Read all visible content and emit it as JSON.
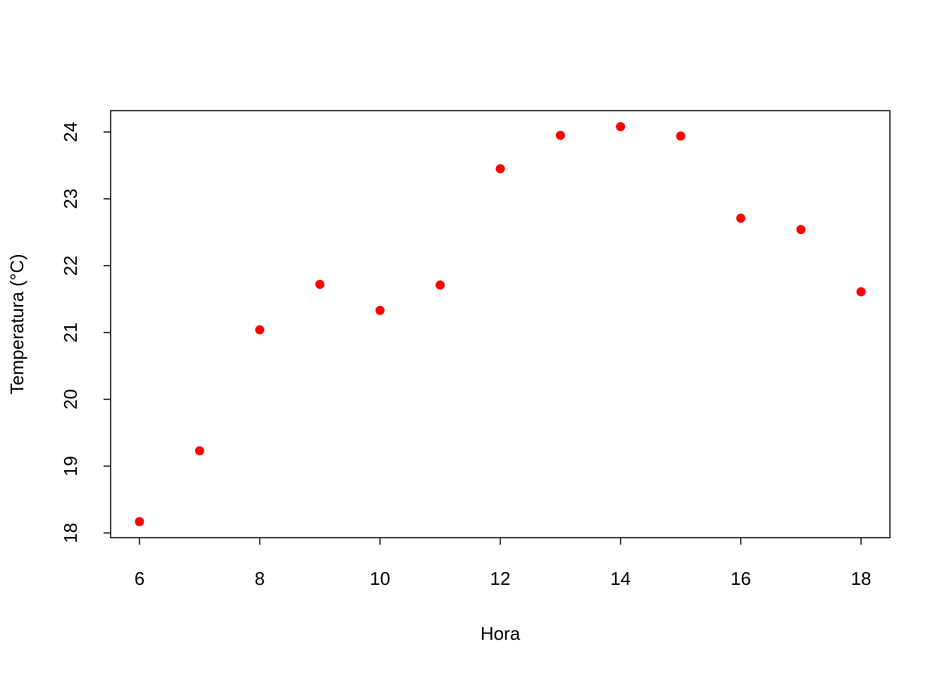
{
  "chart_data": {
    "type": "scatter",
    "x_label": "Hora",
    "y_label": "Temperatura (°C)",
    "series": [
      {
        "color": "#ff0000",
        "x": [
          6,
          7,
          8,
          9,
          10,
          11,
          12,
          13,
          14,
          15,
          16,
          17,
          18
        ],
        "values": [
          18.17,
          19.23,
          21.04,
          21.72,
          21.33,
          21.71,
          23.45,
          23.95,
          24.08,
          23.94,
          22.71,
          22.54,
          21.61
        ]
      }
    ],
    "xlim": [
      5.52,
      18.48
    ],
    "xticks": [
      6,
      8,
      10,
      12,
      14,
      16,
      18
    ],
    "ylim": [
      17.93,
      24.32
    ],
    "yticks": [
      18,
      19,
      20,
      21,
      22,
      23,
      24
    ]
  }
}
